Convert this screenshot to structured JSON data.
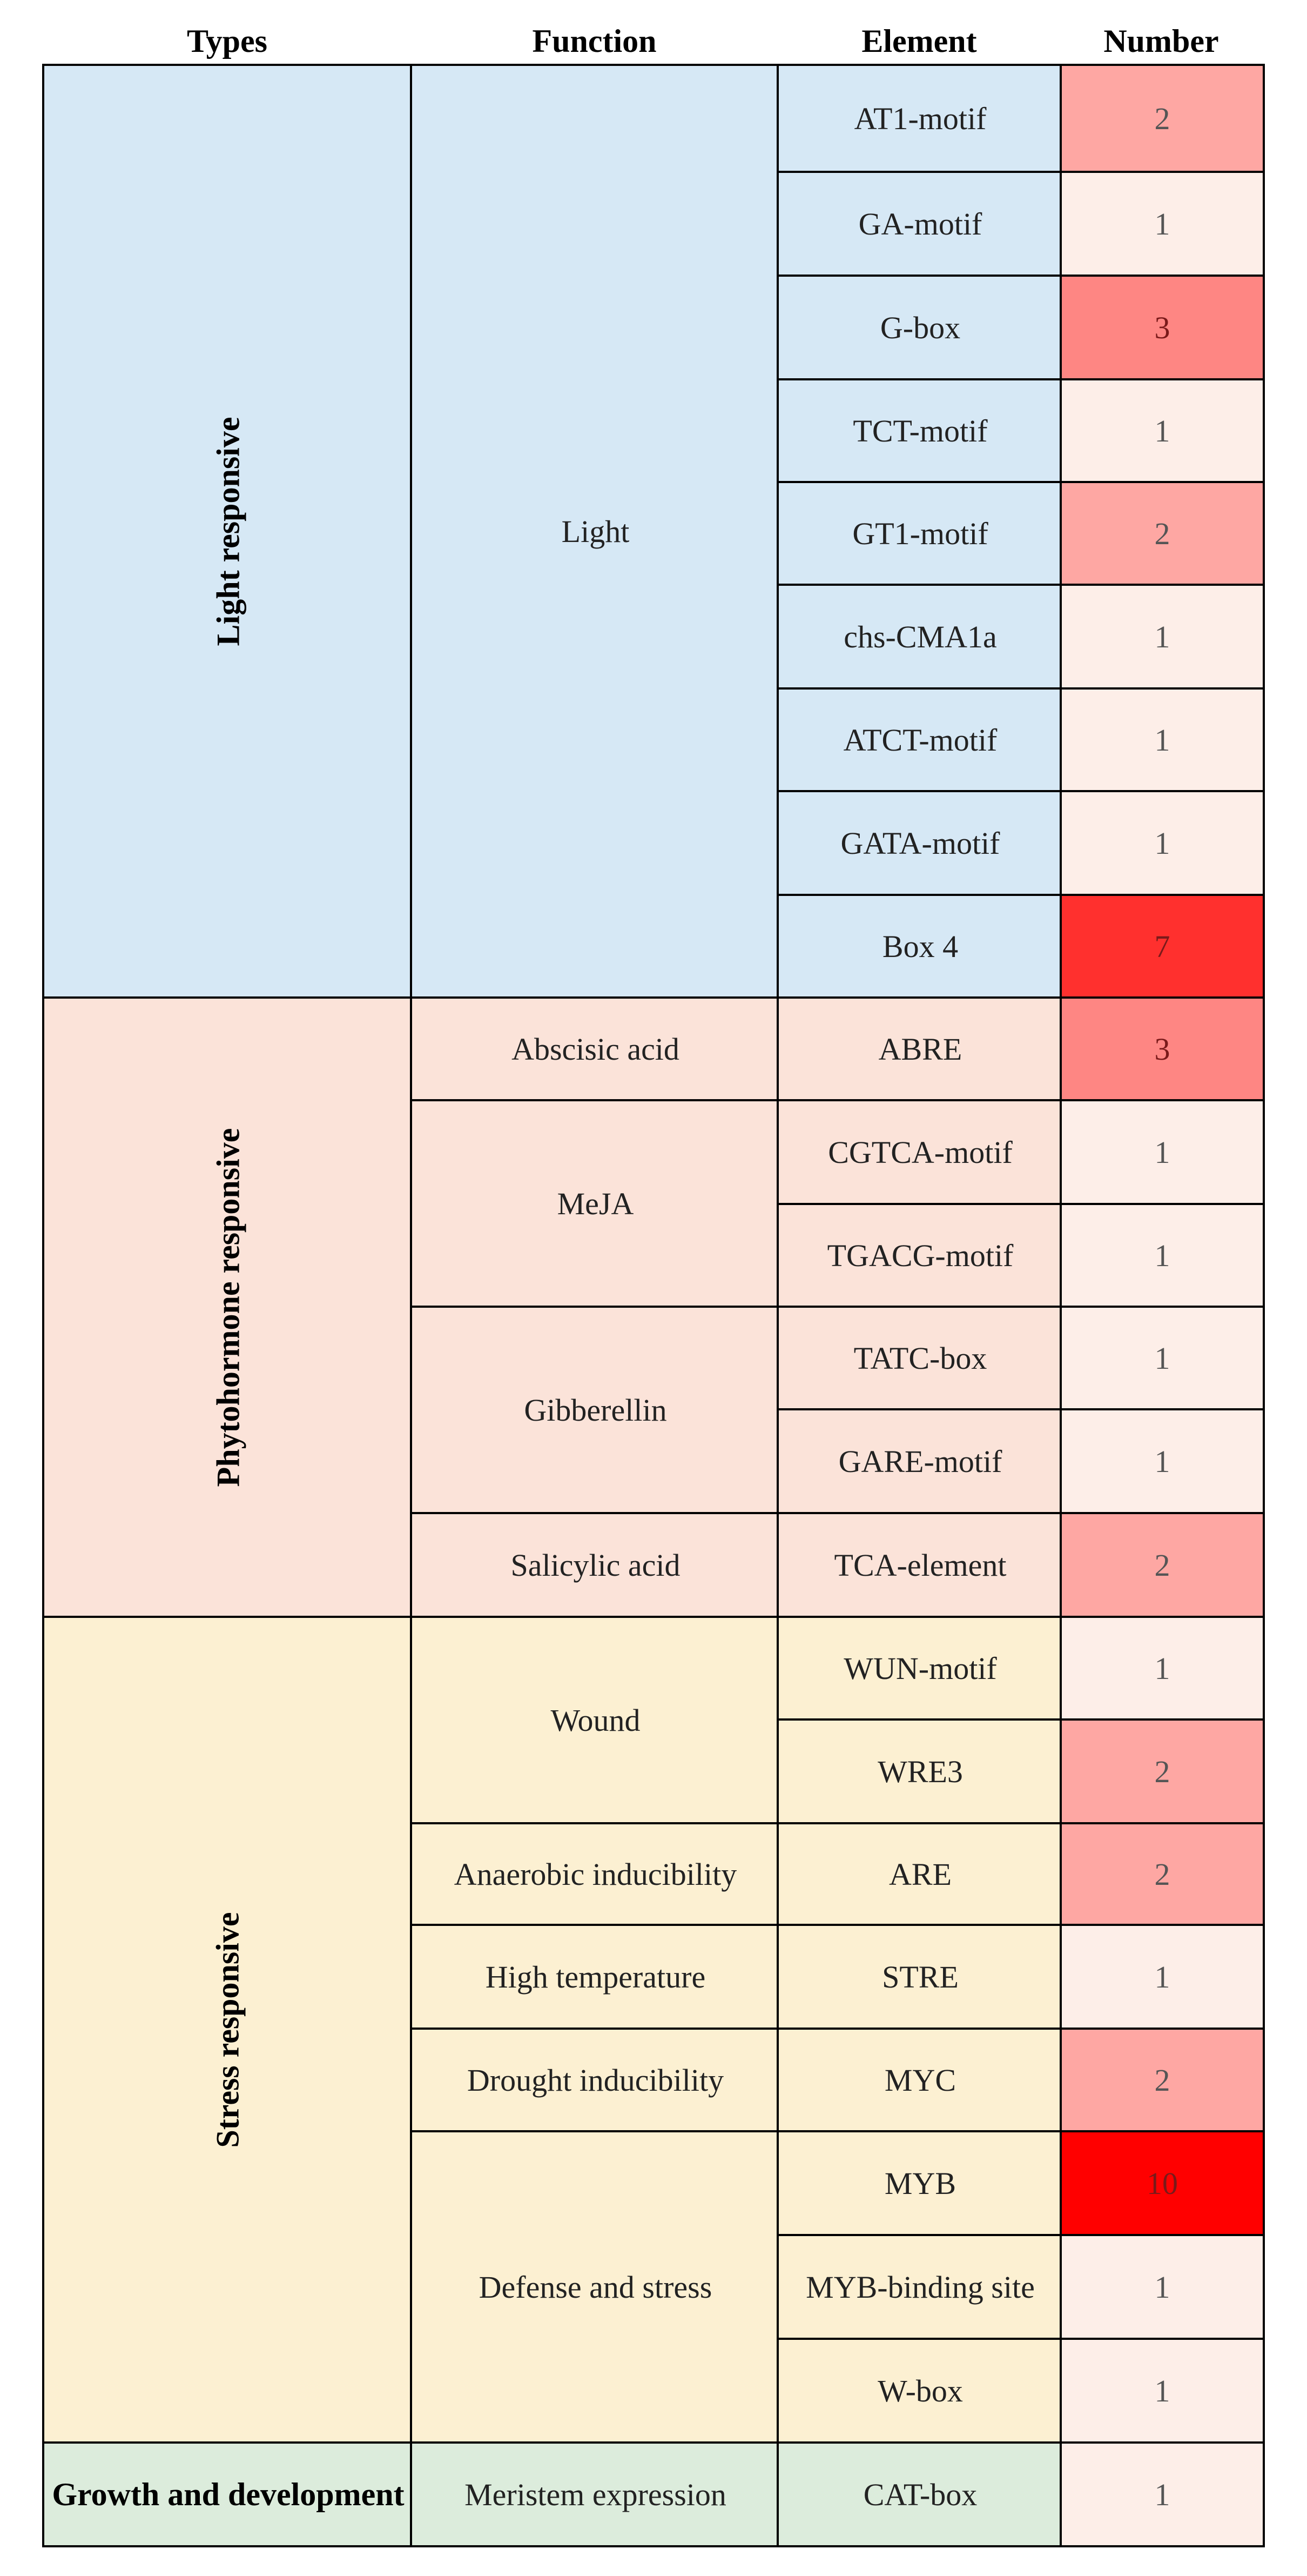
{
  "headers": {
    "types": "Types",
    "function": "Function",
    "element": "Element",
    "number": "Number"
  },
  "colors": {
    "light": "#d6e8f5",
    "phytohormone": "#fbe3d9",
    "stress": "#fcf0d2",
    "growth": "#dcecdc",
    "heat_low": "#fdeee8",
    "heat_high": "#ff0000"
  },
  "types": [
    {
      "label": "Light responsive",
      "group": "light"
    },
    {
      "label": "Phytohormone responsive",
      "group": "phytohormone"
    },
    {
      "label": "Stress responsive",
      "group": "stress"
    },
    {
      "label": "Growth and development",
      "group": "growth"
    }
  ],
  "functions": [
    {
      "label": "Light",
      "group": "light"
    },
    {
      "label": "Abscisic acid",
      "group": "phytohormone"
    },
    {
      "label": "MeJA",
      "group": "phytohormone"
    },
    {
      "label": "Gibberellin",
      "group": "phytohormone"
    },
    {
      "label": "Salicylic acid",
      "group": "phytohormone"
    },
    {
      "label": "Wound",
      "group": "stress"
    },
    {
      "label": "Anaerobic inducibility",
      "group": "stress"
    },
    {
      "label": "High temperature",
      "group": "stress"
    },
    {
      "label": "Drought inducibility",
      "group": "stress"
    },
    {
      "label": "Defense and stress",
      "group": "stress"
    },
    {
      "label": "Meristem expression",
      "group": "growth"
    }
  ],
  "rows": [
    {
      "element": "AT1-motif",
      "number": 2
    },
    {
      "element": "GA-motif",
      "number": 1
    },
    {
      "element": "G-box",
      "number": 3
    },
    {
      "element": "TCT-motif",
      "number": 1
    },
    {
      "element": "GT1-motif",
      "number": 2
    },
    {
      "element": "chs-CMA1a",
      "number": 1
    },
    {
      "element": "ATCT-motif",
      "number": 1
    },
    {
      "element": "GATA-motif",
      "number": 1
    },
    {
      "element": "Box 4",
      "number": 7
    },
    {
      "element": "ABRE",
      "number": 3
    },
    {
      "element": "CGTCA-motif",
      "number": 1
    },
    {
      "element": "TGACG-motif",
      "number": 1
    },
    {
      "element": "TATC-box",
      "number": 1
    },
    {
      "element": "GARE-motif",
      "number": 1
    },
    {
      "element": "TCA-element",
      "number": 2
    },
    {
      "element": "WUN-motif",
      "number": 1
    },
    {
      "element": "WRE3",
      "number": 2
    },
    {
      "element": "ARE",
      "number": 2
    },
    {
      "element": "STRE",
      "number": 1
    },
    {
      "element": "MYC",
      "number": 2
    },
    {
      "element": "MYB",
      "number": 10
    },
    {
      "element": "MYB-binding site",
      "number": 1
    },
    {
      "element": "W-box",
      "number": 1
    },
    {
      "element": "CAT-box",
      "number": 1
    }
  ]
}
